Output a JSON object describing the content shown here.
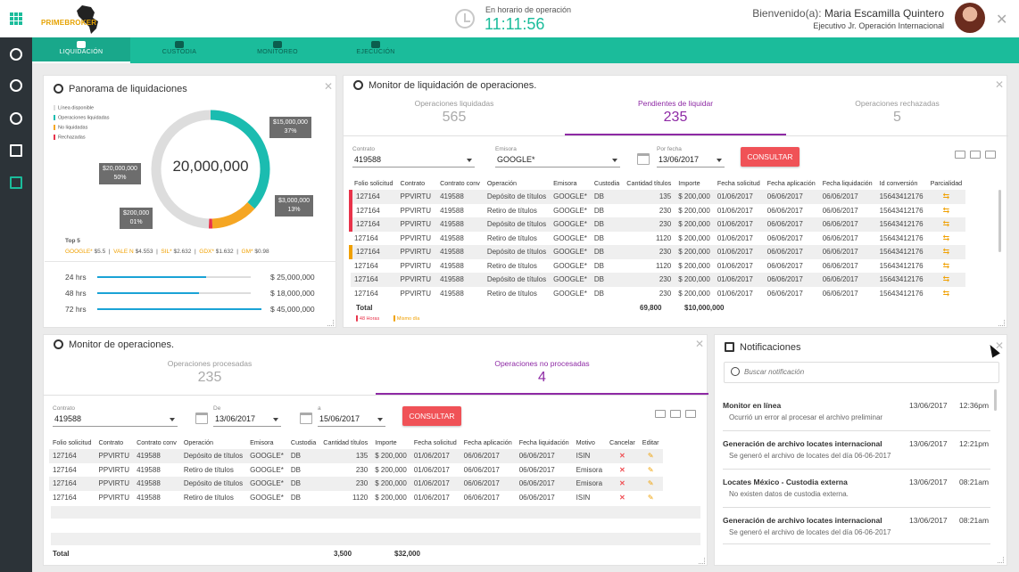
{
  "app": {
    "brand": "PRIMEBROKER"
  },
  "header": {
    "clock_label": "En horario de operación",
    "clock_time": "11:11:56",
    "welcome_prefix": "Bienvenido(a):",
    "user_name": "Maria Escamilla Quintero",
    "user_role": "Ejecutivo Jr. Operación Internacional"
  },
  "nav": [
    {
      "label": "LIQUIDACIÓN",
      "icon": "money-icon",
      "active": true
    },
    {
      "label": "CUSTODIA",
      "icon": "shield-icon"
    },
    {
      "label": "MONITOREO",
      "icon": "monitor-icon"
    },
    {
      "label": "EJECUCIÓN",
      "icon": "gears-icon"
    }
  ],
  "sidebar_icons": [
    "liquidacion-icon",
    "ejecucion-icon",
    "pie-chart-icon",
    "document-icon",
    "calendar-icon"
  ],
  "panorama": {
    "title": "Panorama de liquidaciones",
    "legend": [
      {
        "label": "Línea disponible",
        "color": "#dddddd"
      },
      {
        "label": "Operaciones liquidadas",
        "color": "#1bbcb0"
      },
      {
        "label": "No liquidadas",
        "color": "#f5a623"
      },
      {
        "label": "Rechazadas",
        "color": "#e8334a"
      }
    ],
    "center_value": "20,000,000",
    "labels": [
      {
        "amount": "$15,000,000",
        "pct": "37%"
      },
      {
        "amount": "$20,000,000",
        "pct": "50%"
      },
      {
        "amount": "$3,000,000",
        "pct": "13%"
      },
      {
        "amount": "$200,000",
        "pct": "01%"
      }
    ],
    "top5_title": "Top 5",
    "top5": [
      {
        "k": "GOOGLE*",
        "v": "$5.5"
      },
      {
        "k": "VALE N",
        "v": "$4.553"
      },
      {
        "k": "SIL*",
        "v": "$2.632"
      },
      {
        "k": "GDX*",
        "v": "$1.632"
      },
      {
        "k": "GM*",
        "v": "$0.98"
      }
    ],
    "hours": [
      {
        "label": "24 hrs",
        "amount": "$ 25,000,000",
        "fill": 0.71
      },
      {
        "label": "48 hrs",
        "amount": "$ 18,000,000",
        "fill": 0.66
      },
      {
        "label": "72 hrs",
        "amount": "$ 45,000,000",
        "fill": 1.0
      }
    ]
  },
  "chart_data": {
    "type": "pie",
    "categories": [
      "Operaciones liquidadas",
      "Línea disponible",
      "No liquidadas",
      "Rechazadas"
    ],
    "values": [
      37,
      50,
      13,
      1
    ],
    "labels": [
      "$15,000,000",
      "$20,000,000",
      "$3,000,000",
      "$200,000"
    ],
    "colors": [
      "#1bbcb0",
      "#dddddd",
      "#f5a623",
      "#e8334a"
    ]
  },
  "monitor_liq": {
    "title": "Monitor de liquidación de operaciones.",
    "tabs": [
      {
        "label": "Operaciones liquidadas",
        "count": "565"
      },
      {
        "label": "Pendientes de liquidar",
        "count": "235",
        "active": true
      },
      {
        "label": "Operaciones rechazadas",
        "count": "5"
      }
    ],
    "filters": {
      "contrato_label": "Contrato",
      "contrato": "419588",
      "emisora_label": "Emisora",
      "emisora": "GOOGLE*",
      "fecha_label": "Por fecha",
      "fecha": "13/06/2017",
      "button": "CONSULTAR"
    },
    "columns": [
      "Folio solicitud",
      "Contrato",
      "Contrato conv",
      "Operación",
      "Emisora",
      "Custodia",
      "Cantidad títulos",
      "Importe",
      "Fecha solicitud",
      "Fecha aplicación",
      "Fecha liquidación",
      "Id conversión",
      "Parcialidad"
    ],
    "rows": [
      {
        "flag": "red",
        "c": [
          "127164",
          "PPVIRTU",
          "419588",
          "Depósito de títulos",
          "GOOGLE*",
          "DB",
          "135",
          "$ 200,000",
          "01/06/2017",
          "06/06/2017",
          "06/06/2017",
          "15643412176"
        ]
      },
      {
        "flag": "red",
        "c": [
          "127164",
          "PPVIRTU",
          "419588",
          "Retiro de títulos",
          "GOOGLE*",
          "DB",
          "230",
          "$ 200,000",
          "01/06/2017",
          "06/06/2017",
          "06/06/2017",
          "15643412176"
        ]
      },
      {
        "flag": "red",
        "c": [
          "127164",
          "PPVIRTU",
          "419588",
          "Depósito de títulos",
          "GOOGLE*",
          "DB",
          "230",
          "$ 200,000",
          "01/06/2017",
          "06/06/2017",
          "06/06/2017",
          "15643412176"
        ]
      },
      {
        "flag": "",
        "c": [
          "127164",
          "PPVIRTU",
          "419588",
          "Retiro de títulos",
          "GOOGLE*",
          "DB",
          "1120",
          "$ 200,000",
          "01/06/2017",
          "06/06/2017",
          "06/06/2017",
          "15643412176"
        ]
      },
      {
        "flag": "orange",
        "c": [
          "127164",
          "PPVIRTU",
          "419588",
          "Depósito de títulos",
          "GOOGLE*",
          "DB",
          "230",
          "$ 200,000",
          "01/06/2017",
          "06/06/2017",
          "06/06/2017",
          "15643412176"
        ]
      },
      {
        "flag": "",
        "c": [
          "127164",
          "PPVIRTU",
          "419588",
          "Retiro de títulos",
          "GOOGLE*",
          "DB",
          "1120",
          "$ 200,000",
          "01/06/2017",
          "06/06/2017",
          "06/06/2017",
          "15643412176"
        ]
      },
      {
        "flag": "",
        "c": [
          "127164",
          "PPVIRTU",
          "419588",
          "Depósito de títulos",
          "GOOGLE*",
          "DB",
          "230",
          "$ 200,000",
          "01/06/2017",
          "06/06/2017",
          "06/06/2017",
          "15643412176"
        ]
      },
      {
        "flag": "",
        "c": [
          "127164",
          "PPVIRTU",
          "419588",
          "Retiro de títulos",
          "GOOGLE*",
          "DB",
          "230",
          "$ 200,000",
          "01/06/2017",
          "06/06/2017",
          "06/06/2017",
          "15643412176"
        ]
      }
    ],
    "total_label": "Total",
    "total_qty": "69,800",
    "total_amount": "$10,000,000",
    "legend_48": "48 Horas",
    "legend_same": "Mismo día"
  },
  "monitor_ops": {
    "title": "Monitor de operaciones.",
    "tabs": [
      {
        "label": "Operaciones procesadas",
        "count": "235"
      },
      {
        "label": "Operaciones no procesadas",
        "count": "4",
        "active": true
      }
    ],
    "filters": {
      "contrato_label": "Contrato",
      "contrato": "419588",
      "de_label": "De",
      "de": "13/06/2017",
      "a_label": "a",
      "a": "15/06/2017",
      "button": "CONSULTAR"
    },
    "columns": [
      "Folio solicitud",
      "Contrato",
      "Contrato conv",
      "Operación",
      "Emisora",
      "Custodia",
      "Cantidad títulos",
      "Importe",
      "Fecha solicitud",
      "Fecha aplicación",
      "Fecha liquidación",
      "Motivo",
      "Cancelar",
      "Editar"
    ],
    "rows": [
      [
        "127164",
        "PPVIRTU",
        "419588",
        "Depósito de títulos",
        "GOOGLE*",
        "DB",
        "135",
        "$ 200,000",
        "01/06/2017",
        "06/06/2017",
        "06/06/2017",
        "ISIN"
      ],
      [
        "127164",
        "PPVIRTU",
        "419588",
        "Retiro de títulos",
        "GOOGLE*",
        "DB",
        "230",
        "$ 200,000",
        "01/06/2017",
        "06/06/2017",
        "06/06/2017",
        "Emisora"
      ],
      [
        "127164",
        "PPVIRTU",
        "419588",
        "Depósito de títulos",
        "GOOGLE*",
        "DB",
        "230",
        "$ 200,000",
        "01/06/2017",
        "06/06/2017",
        "06/06/2017",
        "Emisora"
      ],
      [
        "127164",
        "PPVIRTU",
        "419588",
        "Retiro de títulos",
        "GOOGLE*",
        "DB",
        "1120",
        "$ 200,000",
        "01/06/2017",
        "06/06/2017",
        "06/06/2017",
        "ISIN"
      ]
    ],
    "total_label": "Total",
    "total_qty": "3,500",
    "total_amount": "$32,000"
  },
  "notifications": {
    "title": "Notificaciones",
    "search_placeholder": "Buscar notificación",
    "items": [
      {
        "title": "Monitor en línea",
        "desc": "Ocurrió un error al procesar el archivo preliminar",
        "date": "13/06/2017",
        "time": "12:36pm"
      },
      {
        "title": "Generación de archivo locates internacional",
        "desc": "Se generó el archivo de locates del día 06-06-2017",
        "date": "13/06/2017",
        "time": "12:21pm"
      },
      {
        "title": "Locates México - Custodia externa",
        "desc": "No existen datos de custodia externa.",
        "date": "13/06/2017",
        "time": "08:21am"
      },
      {
        "title": "Generación de archivo locates internacional",
        "desc": "Se generó el archivo de locates del día 06-06-2017",
        "date": "13/06/2017",
        "time": "08:21am"
      }
    ]
  }
}
